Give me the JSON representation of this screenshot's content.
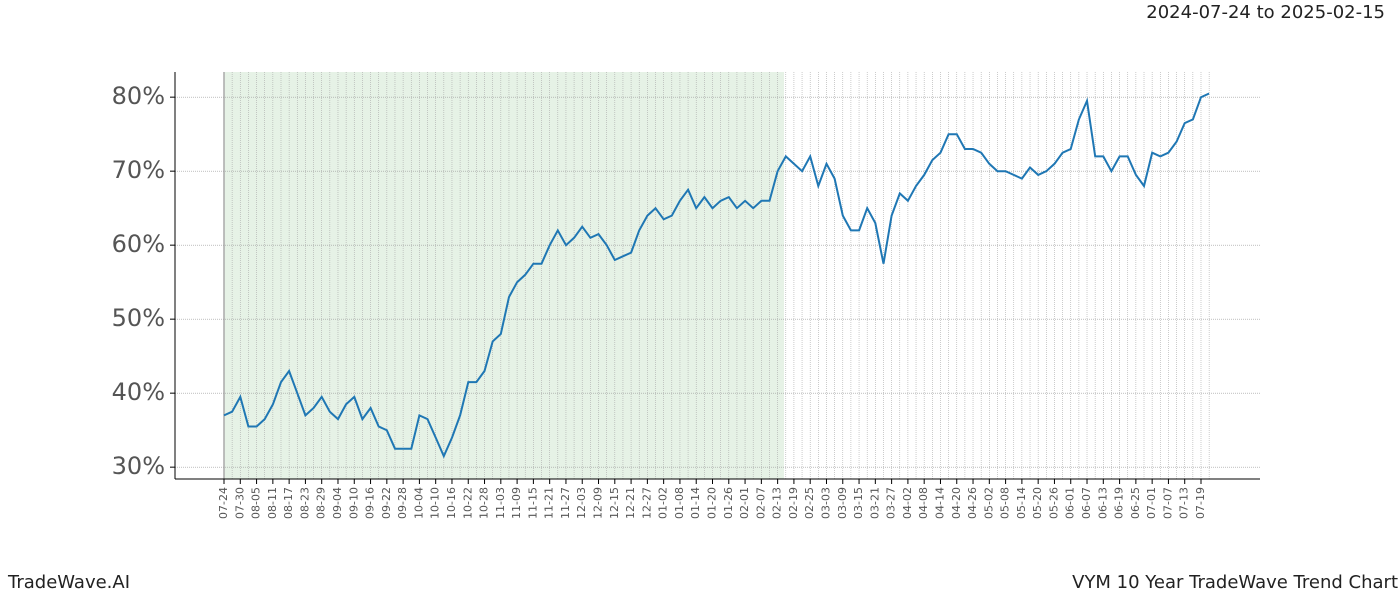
{
  "chart_data": {
    "type": "line",
    "title": "2024-07-24 to 2025-02-15",
    "footer_left": "TradeWave.AI",
    "footer_right": "VYM 10 Year TradeWave Trend Chart",
    "categories": [
      "07-24",
      null,
      "07-30",
      null,
      "08-05",
      null,
      "08-11",
      null,
      "08-17",
      null,
      "08-23",
      null,
      "08-29",
      null,
      "09-04",
      null,
      "09-10",
      null,
      "09-16",
      null,
      "09-22",
      null,
      "09-28",
      null,
      "10-04",
      null,
      "10-10",
      null,
      "10-16",
      null,
      "10-22",
      null,
      "10-28",
      null,
      "11-03",
      null,
      "11-09",
      null,
      "11-15",
      null,
      "11-21",
      null,
      "11-27",
      null,
      "12-03",
      null,
      "12-09",
      null,
      "12-15",
      null,
      "12-21",
      null,
      "12-27",
      null,
      "01-02",
      null,
      "01-08",
      null,
      "01-14",
      null,
      "01-20",
      null,
      "01-26",
      null,
      "02-01",
      null,
      "02-07",
      null,
      "02-13",
      null,
      "02-19",
      null,
      "02-25",
      null,
      "03-03",
      null,
      "03-09",
      null,
      "03-15",
      null,
      "03-21",
      null,
      "03-27",
      null,
      "04-02",
      null,
      "04-08",
      null,
      "04-14",
      null,
      "04-20",
      null,
      "04-26",
      null,
      "05-02",
      null,
      "05-08",
      null,
      "05-14",
      null,
      "05-20",
      null,
      "05-26",
      null,
      "06-01",
      null,
      "06-07",
      null,
      "06-13",
      null,
      "06-19",
      null,
      "06-25",
      null,
      "07-01",
      null,
      "07-07",
      null,
      "07-13",
      null,
      "07-19",
      null
    ],
    "series": [
      {
        "color": "#1f77b4",
        "values": [
          37,
          37.5,
          39.5,
          35.5,
          35.5,
          36.5,
          38.5,
          41.5,
          43,
          40,
          37,
          38,
          39.5,
          37.5,
          36.5,
          38.5,
          39.5,
          36.5,
          38,
          35.5,
          35,
          32.5,
          32.5,
          32.5,
          37,
          36.5,
          34,
          31.5,
          34,
          37,
          41.5,
          41.5,
          43,
          47,
          48,
          53,
          55,
          56,
          57.5,
          57.5,
          60,
          62,
          60,
          61,
          62.5,
          61,
          61.5,
          60,
          58,
          58.5,
          59,
          62,
          64,
          65,
          63.5,
          64,
          66,
          67.5,
          65,
          66.5,
          65,
          66,
          66.5,
          65,
          66,
          65,
          66,
          66,
          70,
          72,
          71,
          70,
          72,
          68,
          71,
          69,
          64,
          62,
          62,
          65,
          63,
          57.5,
          64,
          67,
          66,
          68,
          69.5,
          71.5,
          72.5,
          75,
          75,
          73,
          73,
          72.5,
          71,
          70,
          70,
          69.5,
          69,
          70.5,
          69.5,
          70,
          71,
          72.5,
          73,
          77,
          79.5,
          72,
          72,
          70,
          72,
          72,
          69.5,
          68,
          72.5,
          72,
          72.5,
          74,
          76.5,
          77,
          80,
          80.5
        ]
      }
    ],
    "ylim": [
      28.4,
      83.4
    ],
    "yticks": [
      {
        "value": 30,
        "label": "30%"
      },
      {
        "value": 40,
        "label": "40%"
      },
      {
        "value": 50,
        "label": "50%"
      },
      {
        "value": 60,
        "label": "60%"
      },
      {
        "value": 70,
        "label": "70%"
      },
      {
        "value": 80,
        "label": "80%"
      }
    ],
    "grid": true
  }
}
